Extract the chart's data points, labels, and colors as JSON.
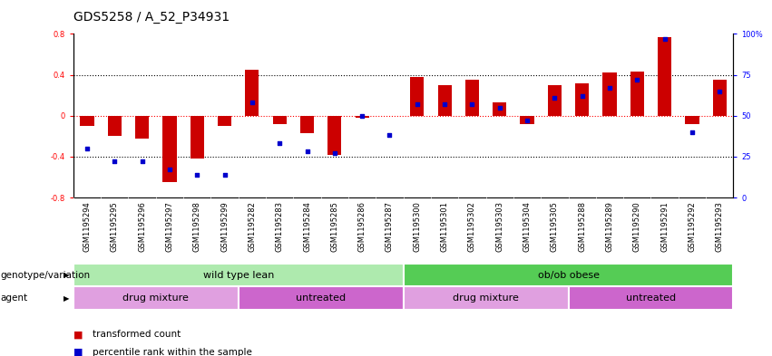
{
  "title": "GDS5258 / A_52_P34931",
  "samples": [
    "GSM1195294",
    "GSM1195295",
    "GSM1195296",
    "GSM1195297",
    "GSM1195298",
    "GSM1195299",
    "GSM1195282",
    "GSM1195283",
    "GSM1195284",
    "GSM1195285",
    "GSM1195286",
    "GSM1195287",
    "GSM1195300",
    "GSM1195301",
    "GSM1195302",
    "GSM1195303",
    "GSM1195304",
    "GSM1195305",
    "GSM1195288",
    "GSM1195289",
    "GSM1195290",
    "GSM1195291",
    "GSM1195292",
    "GSM1195293"
  ],
  "transformed_count": [
    -0.1,
    -0.2,
    -0.22,
    -0.65,
    -0.42,
    -0.1,
    0.45,
    -0.08,
    -0.17,
    -0.38,
    -0.02,
    0.0,
    0.38,
    0.3,
    0.35,
    0.13,
    -0.08,
    0.3,
    0.32,
    0.42,
    0.43,
    0.77,
    -0.08,
    0.35
  ],
  "percentile_rank": [
    30,
    22,
    22,
    17,
    14,
    14,
    58,
    33,
    28,
    27,
    50,
    38,
    57,
    57,
    57,
    55,
    47,
    61,
    62,
    67,
    72,
    97,
    40,
    65
  ],
  "ylim_left": [
    -0.8,
    0.8
  ],
  "ylim_right": [
    0,
    100
  ],
  "yticks_left": [
    -0.8,
    -0.4,
    0.0,
    0.4,
    0.8
  ],
  "yticks_right": [
    0,
    25,
    50,
    75,
    100
  ],
  "ytick_labels_right": [
    "0",
    "25",
    "50",
    "75",
    "100%"
  ],
  "hlines": [
    0.4,
    0.0,
    -0.4
  ],
  "hline_colors": [
    "black",
    "red",
    "black"
  ],
  "hline_styles": [
    "dotted",
    "dotted",
    "dotted"
  ],
  "bar_color": "#cc0000",
  "scatter_color": "#0000cc",
  "bar_width": 0.5,
  "groups": [
    {
      "label": "wild type lean",
      "start": 0,
      "end": 11,
      "color": "#aeeaae"
    },
    {
      "label": "ob/ob obese",
      "start": 12,
      "end": 23,
      "color": "#55cc55"
    }
  ],
  "subgroups": [
    {
      "label": "drug mixture",
      "start": 0,
      "end": 5,
      "color": "#e0a0e0"
    },
    {
      "label": "untreated",
      "start": 6,
      "end": 11,
      "color": "#cc66cc"
    },
    {
      "label": "drug mixture",
      "start": 12,
      "end": 17,
      "color": "#e0a0e0"
    },
    {
      "label": "untreated",
      "start": 18,
      "end": 23,
      "color": "#cc66cc"
    }
  ],
  "annotation_genotype": "genotype/variation",
  "annotation_agent": "agent",
  "legend_items": [
    {
      "color": "#cc0000",
      "label": "transformed count"
    },
    {
      "color": "#0000cc",
      "label": "percentile rank within the sample"
    }
  ],
  "title_fontsize": 10,
  "tick_fontsize": 6,
  "group_fontsize": 8,
  "annotation_fontsize": 7.5
}
